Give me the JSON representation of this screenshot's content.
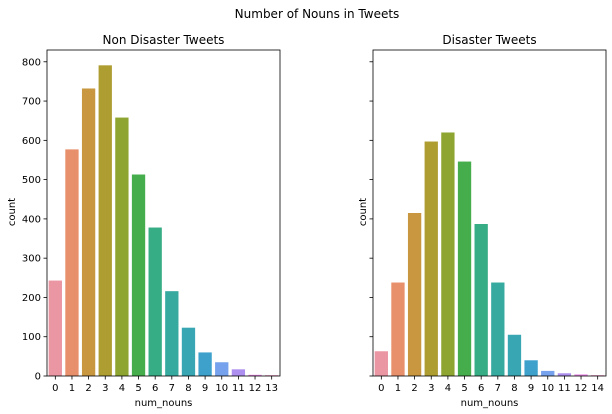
{
  "suptitle": "Number of Nouns in Tweets",
  "chart_data": [
    {
      "type": "bar",
      "title": "Non Disaster Tweets",
      "xlabel": "num_nouns",
      "ylabel": "count",
      "categories": [
        "0",
        "1",
        "2",
        "3",
        "4",
        "5",
        "6",
        "7",
        "8",
        "9",
        "10",
        "11",
        "12",
        "13"
      ],
      "values": [
        243,
        577,
        732,
        791,
        658,
        513,
        378,
        216,
        123,
        60,
        35,
        17,
        3,
        2
      ],
      "ylim": [
        0,
        830
      ],
      "yticks": [
        0,
        100,
        200,
        300,
        400,
        500,
        600,
        700,
        800
      ],
      "grid": false,
      "colors": [
        "#ea96a3",
        "#e8906b",
        "#c8973f",
        "#ae9d31",
        "#8ea631",
        "#45ad4b",
        "#36ad84",
        "#37aa9f",
        "#39a7b3",
        "#3ea1cb",
        "#76a1ec",
        "#ad8fef",
        "#e884e6",
        "#f48bc2"
      ]
    },
    {
      "type": "bar",
      "title": "Disaster Tweets",
      "xlabel": "num_nouns",
      "ylabel": "count",
      "categories": [
        "0",
        "1",
        "2",
        "3",
        "4",
        "5",
        "6",
        "7",
        "8",
        "9",
        "10",
        "11",
        "12",
        "14"
      ],
      "values": [
        63,
        238,
        415,
        597,
        620,
        546,
        387,
        238,
        105,
        40,
        13,
        7,
        4,
        2
      ],
      "ylim": [
        0,
        830
      ],
      "yticks": [
        0,
        100,
        200,
        300,
        400,
        500,
        600,
        700,
        800
      ],
      "show_yticklabels": false,
      "grid": false,
      "colors": [
        "#ea96a3",
        "#e8906b",
        "#c8973f",
        "#ae9d31",
        "#8ea631",
        "#45ad4b",
        "#36ad84",
        "#37aa9f",
        "#39a7b3",
        "#3ea1cb",
        "#76a1ec",
        "#ad8fef",
        "#e884e6",
        "#f48bc2"
      ]
    }
  ]
}
